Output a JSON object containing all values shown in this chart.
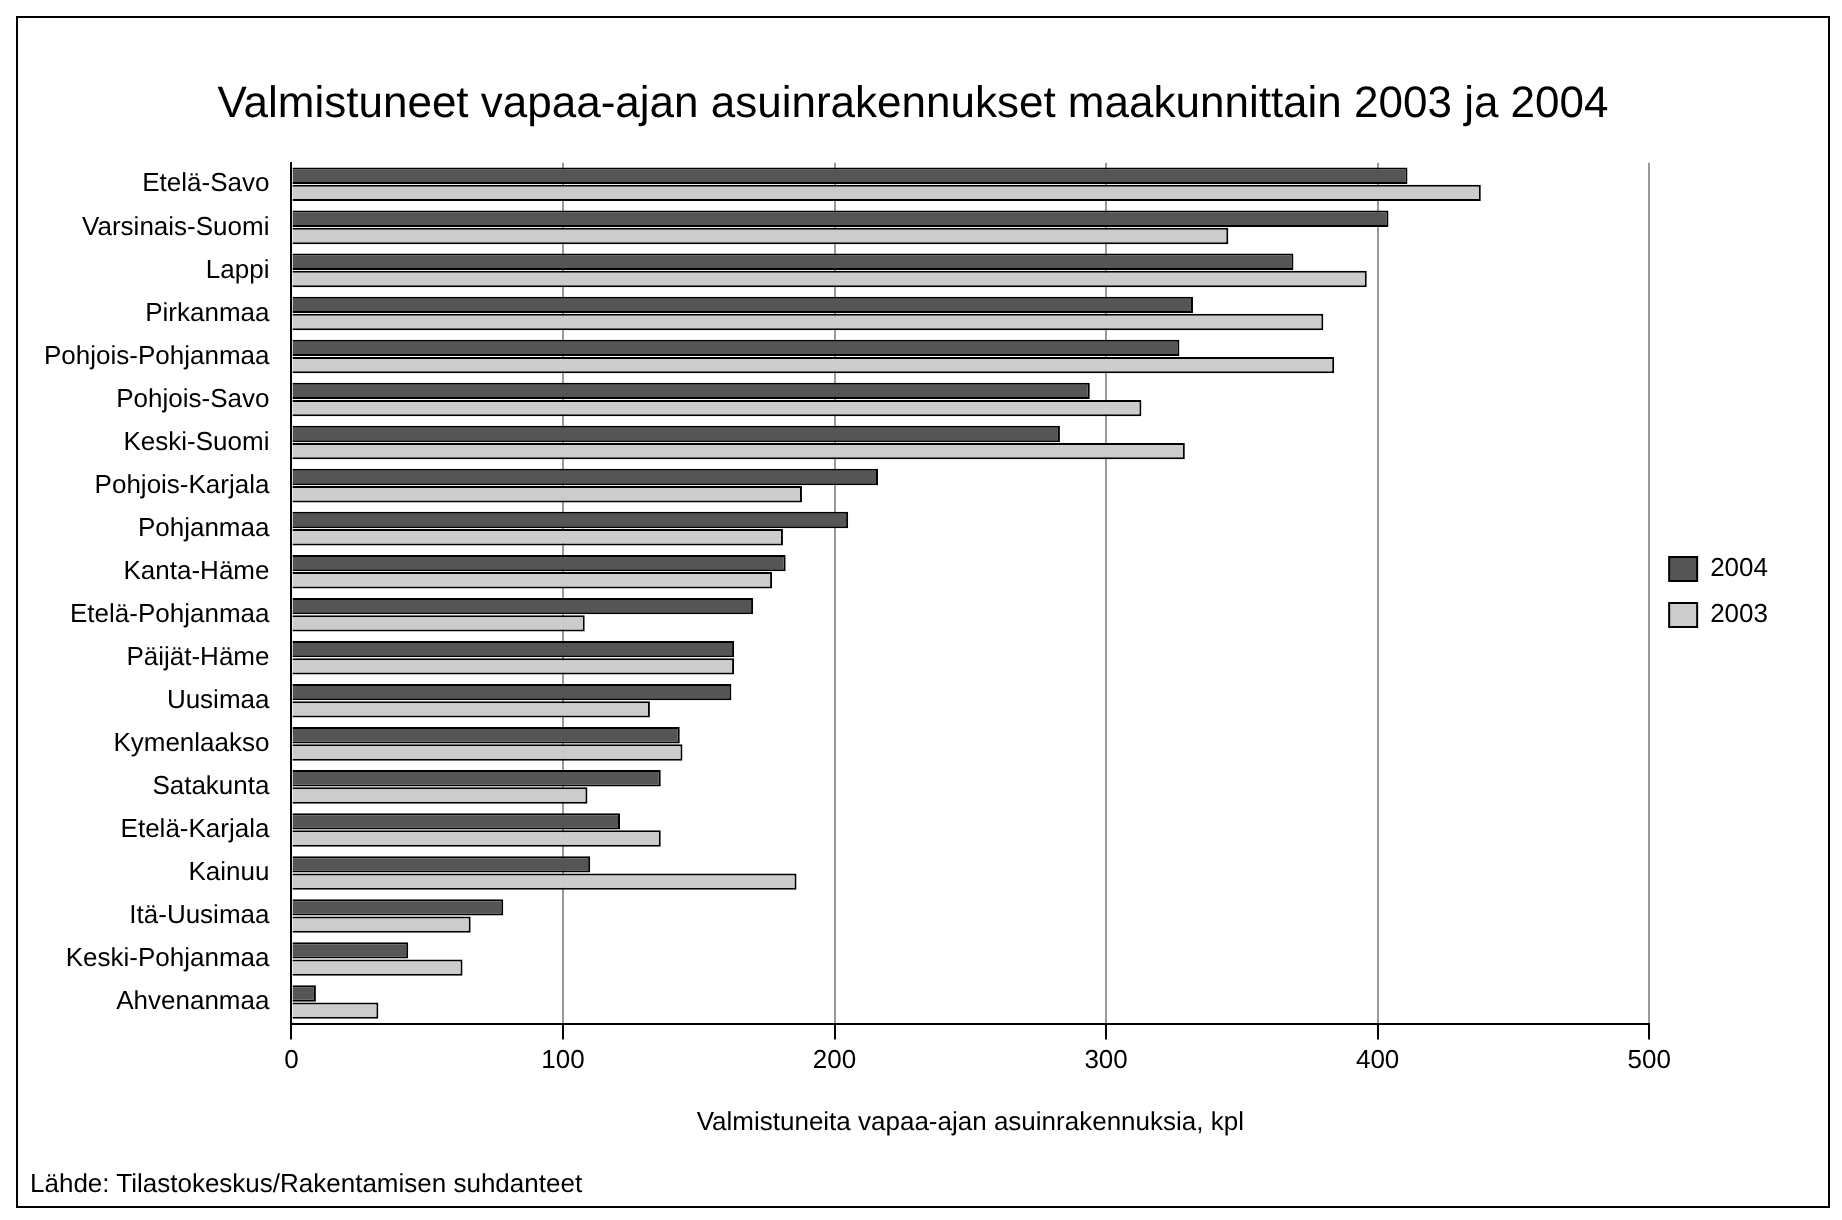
{
  "chart_data": {
    "type": "bar",
    "orientation": "horizontal",
    "title": "Valmistuneet vapaa-ajan asuinrakennukset maakunnittain 2003 ja 2004",
    "categories": [
      "Etelä-Savo",
      "Varsinais-Suomi",
      "Lappi",
      "Pirkanmaa",
      "Pohjois-Pohjanmaa",
      "Pohjois-Savo",
      "Keski-Suomi",
      "Pohjois-Karjala",
      "Pohjanmaa",
      "Kanta-Häme",
      "Etelä-Pohjanmaa",
      "Päijät-Häme",
      "Uusimaa",
      "Kymenlaakso",
      "Satakunta",
      "Etelä-Karjala",
      "Kainuu",
      "Itä-Uusimaa",
      "Keski-Pohjanmaa",
      "Ahvenanmaa"
    ],
    "series": [
      {
        "name": "2004",
        "color": "#555555",
        "values": [
          411,
          404,
          369,
          332,
          327,
          294,
          283,
          216,
          205,
          182,
          170,
          163,
          162,
          143,
          136,
          121,
          110,
          78,
          43,
          9
        ]
      },
      {
        "name": "2003",
        "color": "#cccccc",
        "values": [
          438,
          345,
          396,
          380,
          384,
          313,
          329,
          188,
          181,
          177,
          108,
          163,
          132,
          144,
          109,
          136,
          186,
          66,
          63,
          32
        ]
      }
    ],
    "xlim": [
      0,
      500
    ],
    "xticks": [
      0,
      100,
      200,
      300,
      400,
      500
    ],
    "xlabel": "Valmistuneita vapaa-ajan asuinrakennuksia, kpl",
    "grid": "x",
    "legend": "right",
    "annotations": [
      "Lähde: Tilastokeskus/Rakentamisen suhdanteet"
    ]
  }
}
